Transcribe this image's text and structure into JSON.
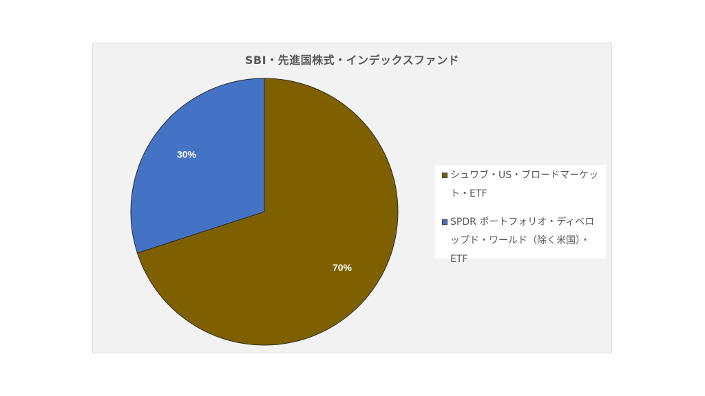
{
  "chart_data": {
    "type": "pie",
    "title": "SBI・先進国株式・インデックスファンド",
    "categories": [
      "シュワブ・US・ブロードマーケット・ETF",
      "SPDR ポートフォリオ・ディベロップド・ワールド（除く米国）・ETF"
    ],
    "values": [
      70,
      30
    ],
    "data_labels": [
      "70%",
      "30%"
    ],
    "colors": [
      "#7f6000",
      "#4472c4"
    ],
    "legend_position": "right"
  }
}
